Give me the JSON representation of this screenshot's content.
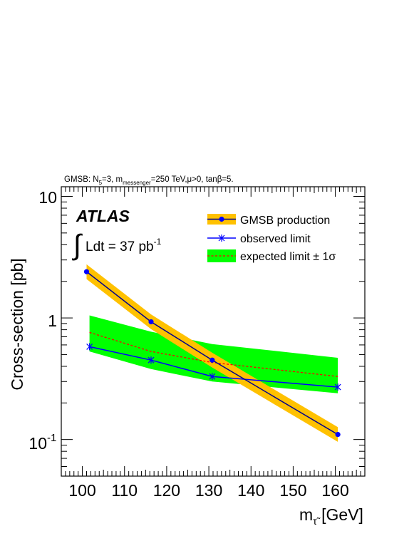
{
  "chart_data": {
    "type": "line",
    "header": {
      "base": "GMSB: N",
      "n5_sub": "5",
      "mid1": "=3, m",
      "m_sub": "messenger",
      "mid2": "=250 TeV,",
      "mu": "μ",
      "mid3": ">0, tan",
      "beta": "β",
      "tail": "=5."
    },
    "experiment": "ATLAS",
    "luminosity": {
      "integral": "∫",
      "text": "Ldt = 37 pb",
      "exponent": "-1"
    },
    "ylabel": "Cross-section [pb]",
    "xlabel": {
      "base": "m",
      "sub": "τ̃",
      "unit": " [GeV]"
    },
    "y_scale": "log",
    "xlim": [
      95,
      167
    ],
    "ylim": [
      0.05,
      12
    ],
    "x_ticks": [
      100,
      110,
      120,
      130,
      140,
      150,
      160
    ],
    "x_tick_labels": [
      "100",
      "110",
      "120",
      "130",
      "140",
      "150",
      "160"
    ],
    "y_tick_labels": {
      "ten": "10",
      "one": "1",
      "tenth_base": "10",
      "tenth_exp": "-1"
    },
    "legend": {
      "position": "top-right",
      "entries": [
        {
          "label": "GMSB production"
        },
        {
          "label": "observed limit"
        },
        {
          "label": "expected limit ± 1σ"
        }
      ]
    },
    "series": [
      {
        "name": "GMSB production",
        "x": [
          101,
          116.3,
          130.8,
          160.6
        ],
        "y": [
          2.4,
          0.93,
          0.45,
          0.11
        ],
        "band_factor": 1.15,
        "color": "#00008b",
        "band_color": "#ffc100"
      },
      {
        "name": "observed limit",
        "x": [
          101.7,
          116.3,
          130.8,
          160.6
        ],
        "y": [
          0.58,
          0.45,
          0.33,
          0.27
        ],
        "color": "#0000ff"
      },
      {
        "name": "expected limit",
        "x": [
          101.7,
          116.3,
          130.8,
          160.6
        ],
        "y": [
          0.76,
          0.53,
          0.43,
          0.33
        ],
        "band_upper": [
          1.05,
          0.77,
          0.61,
          0.47
        ],
        "band_lower": [
          0.53,
          0.38,
          0.3,
          0.24
        ],
        "color": "#ff0000",
        "band_color": "#00ff00"
      }
    ]
  }
}
